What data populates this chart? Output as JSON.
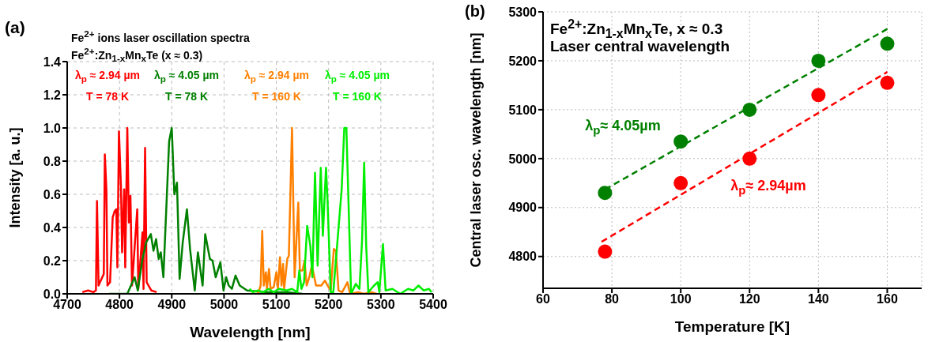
{
  "chart_data": [
    {
      "type": "line",
      "annotations": [
        "(a)",
        "Fe$^{2+}$ ions laser oscillation spectra",
        "Fe$^{2+}$:Zn$_{1-x}$Mn$_{x}$Te (x ≈ 0.3)"
      ],
      "xlabel": "Wavelength [nm]",
      "ylabel": "Intensity [a. u.]",
      "xlim": [
        4700,
        5400
      ],
      "xticks": [
        4700,
        4800,
        4900,
        5000,
        5100,
        5200,
        5300,
        5400
      ],
      "ylim": [
        0,
        1.4
      ],
      "yticks": [
        {
          "value": 0,
          "label": "0.0"
        },
        {
          "value": 0.2,
          "label": "0.2"
        },
        {
          "value": 0.4,
          "label": "0.4"
        },
        {
          "value": 0.6,
          "label": "0.6"
        },
        {
          "value": 0.8,
          "label": "0.8"
        },
        {
          "value": 1,
          "label": "1.0"
        },
        {
          "value": 1.2,
          "label": "1.2"
        },
        {
          "value": 1.4,
          "label": "1.4"
        }
      ],
      "grid": true,
      "line_style": "solid",
      "series": [
        {
          "name": "λ$_{p}$ ≈ 2.94 µm\nT = 78 K",
          "color": "#ff0000",
          "x": [
            4729,
            4740,
            4750,
            4755,
            4757,
            4760,
            4770,
            4772,
            4775,
            4777,
            4782,
            4787,
            4791,
            4794,
            4796,
            4799,
            4803,
            4805,
            4809,
            4811,
            4815,
            4818,
            4821,
            4824,
            4834,
            4836,
            4844,
            4846,
            4849,
            4852,
            4861,
            4871
          ],
          "values": [
            0.01,
            0.02,
            0.01,
            0.02,
            0.56,
            0.05,
            0.12,
            0.84,
            0.63,
            0.05,
            0.07,
            0.46,
            0.5,
            0.51,
            0.16,
            0.98,
            0.63,
            0.25,
            0.63,
            0.16,
            1.0,
            0.43,
            0.59,
            0.05,
            0.51,
            0.03,
            0.37,
            0.03,
            0.88,
            0.07,
            0.02,
            0.01
          ]
        },
        {
          "name": "λ$_{p}$ ≈ 4.05 µm\nT = 78 K",
          "color": "#008000",
          "x": [
            4780,
            4815,
            4829,
            4835,
            4844,
            4851,
            4860,
            4865,
            4870,
            4875,
            4879,
            4884,
            4895,
            4900,
            4905,
            4910,
            4915,
            4921,
            4929,
            4935,
            4944,
            4950,
            4959,
            4964,
            4973,
            4978,
            4984,
            4993,
            4999,
            5004,
            5009,
            5015,
            5022,
            5030,
            5044,
            5080,
            5120,
            5150
          ],
          "values": [
            0,
            0,
            0.1,
            0.02,
            0.21,
            0.31,
            0.36,
            0.26,
            0.33,
            0.21,
            0.25,
            0.1,
            0.92,
            1.0,
            0.6,
            0.67,
            0.09,
            0.31,
            0.51,
            0.27,
            0.02,
            0.25,
            0.05,
            0.36,
            0.21,
            0.2,
            0.1,
            0.19,
            0.02,
            0.1,
            0.05,
            0.03,
            0.11,
            0.05,
            0.02,
            0.01,
            0.01,
            0
          ]
        },
        {
          "name": "λ$_{p}$ ≈ 2.94 µm\nT = 160 K",
          "color": "#ff8000",
          "x": [
            5050,
            5065,
            5070,
            5073,
            5076,
            5080,
            5082,
            5086,
            5089,
            5095,
            5100,
            5103,
            5107,
            5110,
            5113,
            5115,
            5121,
            5124,
            5130,
            5135,
            5142,
            5145,
            5150,
            5154,
            5158,
            5163,
            5168,
            5176,
            5186,
            5193,
            5198,
            5204,
            5210,
            5214,
            5219,
            5226,
            5236,
            5241,
            5257,
            5267,
            5282,
            5292
          ],
          "values": [
            0,
            0,
            0.05,
            0.38,
            0.05,
            0.13,
            0.03,
            0.15,
            0.03,
            0.04,
            0.13,
            0.03,
            0.22,
            0.05,
            0.18,
            0.03,
            0.21,
            0.23,
            1.0,
            0.1,
            0.55,
            0.14,
            0.14,
            0.2,
            0.05,
            0.1,
            0.17,
            0.05,
            0.05,
            0.08,
            0.05,
            0.02,
            0.27,
            0.26,
            0.02,
            0.01,
            0.07,
            0,
            0.01,
            0,
            0.01,
            0
          ]
        },
        {
          "name": "λ$_{p}$ ≈ 4.05 µm\nT = 160 K",
          "color": "#00ee00",
          "x": [
            5049,
            5055,
            5065,
            5075,
            5085,
            5095,
            5105,
            5120,
            5130,
            5140,
            5144,
            5148,
            5153,
            5159,
            5165,
            5169,
            5174,
            5179,
            5185,
            5189,
            5195,
            5198,
            5204,
            5209,
            5225,
            5230,
            5234,
            5238,
            5243,
            5252,
            5259,
            5264,
            5268,
            5272,
            5276,
            5287,
            5294,
            5297,
            5304,
            5309,
            5322,
            5337,
            5352,
            5362,
            5372,
            5382,
            5392,
            5397
          ],
          "values": [
            0.03,
            0.01,
            0.02,
            0.01,
            0.03,
            0.01,
            0.03,
            0.02,
            0.03,
            0.01,
            0.14,
            0.03,
            0.07,
            0.41,
            0.29,
            0.1,
            0.73,
            0.17,
            0.76,
            0.35,
            0.76,
            0.56,
            0.01,
            0.01,
            0.63,
            1.0,
            1.0,
            0.56,
            0,
            0.06,
            0.03,
            0.32,
            0.79,
            0.28,
            0.01,
            0.05,
            0.07,
            0.01,
            0.3,
            0.02,
            0.03,
            0,
            0.03,
            0.02,
            0.05,
            0.02,
            0.03,
            0.01
          ]
        }
      ]
    },
    {
      "type": "scatter",
      "annotations": [
        "(b)",
        "Fe$^{2+}$:Zn$_{1-x}$Mn$_{x}$Te, x ≈ 0.3",
        "Laser central wavelength"
      ],
      "xlabel": "Temperature [K]",
      "ylabel": "Central laser osc. wavelength [nm]",
      "xlim": [
        60,
        170
      ],
      "xticks": [
        60,
        80,
        100,
        120,
        140,
        160
      ],
      "ylim": [
        4735,
        5300
      ],
      "yticks": [
        4800,
        4900,
        5000,
        5100,
        5200,
        5300
      ],
      "grid": true,
      "x": [
        78,
        100,
        120,
        140,
        160
      ],
      "series": [
        {
          "name": "λ$_{p}$≈ 4.05µm",
          "color": "#008000",
          "marker": "circle",
          "values": [
            4930,
            5035,
            5100,
            5200,
            5235
          ]
        },
        {
          "name": "λ$_{p}$≈ 2.94µm",
          "color": "#ff0000",
          "marker": "circle",
          "values": [
            4810,
            4950,
            5000,
            5130,
            5155
          ]
        },
        {
          "type": "line",
          "color": "#008000",
          "line_style": "dashed",
          "x": [
            78,
            160
          ],
          "values": [
            4937,
            5265
          ]
        },
        {
          "type": "line",
          "color": "#ff0000",
          "line_style": "dashed",
          "x": [
            77,
            160
          ],
          "values": [
            4830,
            5177
          ]
        }
      ]
    }
  ]
}
